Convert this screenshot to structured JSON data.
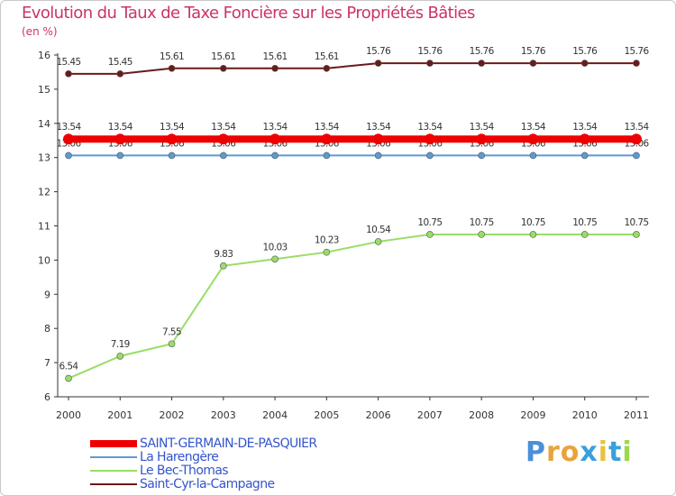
{
  "title": "Evolution du Taux de Taxe Foncière sur les Propriétés Bâties",
  "unit_label": "(en %)",
  "logo": {
    "letters": [
      "P",
      "r",
      "o",
      "x",
      "i",
      "t",
      "i"
    ],
    "colors": [
      "#4a90d9",
      "#e8a33a",
      "#e8a33a",
      "#3aa0d9",
      "#e8c33a",
      "#3aa0d9",
      "#9bd94a"
    ]
  },
  "chart_data": {
    "type": "line",
    "title": "Evolution du Taux de Taxe Foncière sur les Propriétés Bâties",
    "xlabel": "",
    "ylabel": "(en %)",
    "x": [
      "2000",
      "2001",
      "2002",
      "2003",
      "2004",
      "2005",
      "2006",
      "2007",
      "2008",
      "2009",
      "2010",
      "2011"
    ],
    "ylim": [
      6,
      16
    ],
    "yticks": [
      "6",
      "7",
      "8",
      "9",
      "10",
      "11",
      "12",
      "13",
      "14",
      "15",
      "16"
    ],
    "series": [
      {
        "name": "Saint-Cyr-la-Campagne",
        "color": "#6b1a1a",
        "values": [
          15.45,
          15.45,
          15.61,
          15.61,
          15.61,
          15.61,
          15.76,
          15.76,
          15.76,
          15.76,
          15.76,
          15.76
        ],
        "labels": [
          "15.45",
          "15.45",
          "15.61",
          "15.61",
          "15.61",
          "15.61",
          "15.76",
          "15.76",
          "15.76",
          "15.76",
          "15.76",
          "15.76"
        ]
      },
      {
        "name": "La Harengère",
        "color": "#5b9bd5",
        "values": [
          13.06,
          13.06,
          13.06,
          13.06,
          13.06,
          13.06,
          13.06,
          13.06,
          13.06,
          13.06,
          13.06,
          13.06
        ],
        "labels": [
          "13.06",
          "13.06",
          "13.06",
          "13.06",
          "13.06",
          "13.06",
          "13.06",
          "13.06",
          "13.06",
          "13.06",
          "13.06",
          "13.06"
        ]
      },
      {
        "name": "SAINT-GERMAIN-DE-PASQUIER",
        "color": "#ee0000",
        "values": [
          13.54,
          13.54,
          13.54,
          13.54,
          13.54,
          13.54,
          13.54,
          13.54,
          13.54,
          13.54,
          13.54,
          13.54
        ],
        "labels": [
          "13.54",
          "13.54",
          "13.54",
          "13.54",
          "13.54",
          "13.54",
          "13.54",
          "13.54",
          "13.54",
          "13.54",
          "13.54",
          "13.54"
        ]
      },
      {
        "name": "Le Bec-Thomas",
        "color": "#99dd66",
        "values": [
          6.54,
          7.19,
          7.55,
          9.83,
          10.03,
          10.23,
          10.54,
          10.75,
          10.75,
          10.75,
          10.75,
          10.75
        ],
        "labels": [
          "6.54",
          "7.19",
          "7.55",
          "9.83",
          "10.03",
          "10.23",
          "10.54",
          "10.75",
          "10.75",
          "10.75",
          "10.75",
          "10.75"
        ]
      }
    ],
    "legend": [
      {
        "name": "SAINT-GERMAIN-DE-PASQUIER",
        "color": "#ee0000"
      },
      {
        "name": "La Harengère",
        "color": "#5b9bd5"
      },
      {
        "name": "Le Bec-Thomas",
        "color": "#99dd66"
      },
      {
        "name": "Saint-Cyr-la-Campagne",
        "color": "#6b1a1a"
      }
    ],
    "legend_position": "bottom-left"
  }
}
